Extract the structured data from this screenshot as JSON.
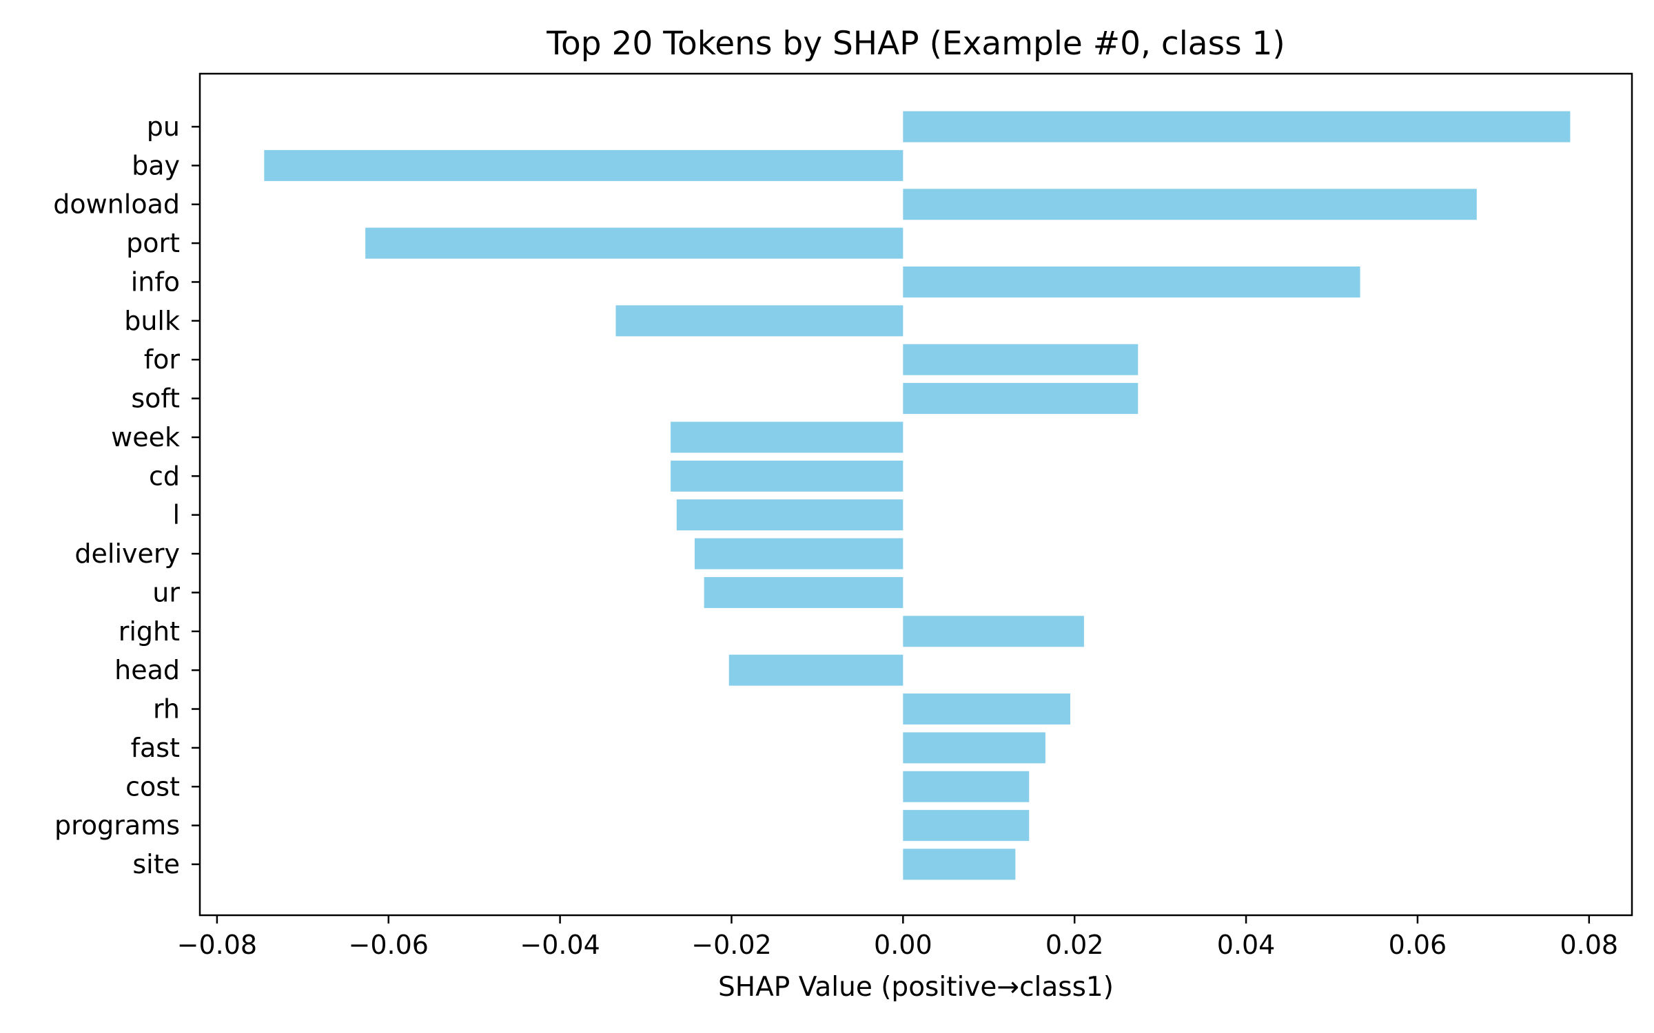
{
  "chart_data": {
    "type": "bar",
    "orientation": "horizontal",
    "title": "Top 20 Tokens by SHAP (Example #0, class 1)",
    "xlabel": "SHAP Value (positive→class1)",
    "ylabel": "",
    "xlim": [
      -0.082,
      0.085
    ],
    "xticks": [
      -0.08,
      -0.06,
      -0.04,
      -0.02,
      0.0,
      0.02,
      0.04,
      0.06,
      0.08
    ],
    "xtick_labels": [
      "−0.08",
      "−0.06",
      "−0.04",
      "−0.02",
      "0.00",
      "0.02",
      "0.04",
      "0.06",
      "0.08"
    ],
    "categories": [
      "pu",
      "bay",
      "download",
      "port",
      "info",
      "bulk",
      "for",
      "soft",
      "week",
      "cd",
      "l",
      "delivery",
      "ur",
      "right",
      "head",
      "rh",
      "fast",
      "cost",
      "programs",
      "site"
    ],
    "values": [
      0.0778,
      -0.0745,
      0.0669,
      -0.0627,
      0.0533,
      -0.0335,
      0.0274,
      0.0274,
      -0.0271,
      -0.0271,
      -0.0264,
      -0.0243,
      -0.0232,
      0.0211,
      -0.0203,
      0.0195,
      0.0166,
      0.0147,
      0.0147,
      0.0131
    ],
    "bar_color": "#87ceeb",
    "grid": false,
    "legend": "none"
  }
}
